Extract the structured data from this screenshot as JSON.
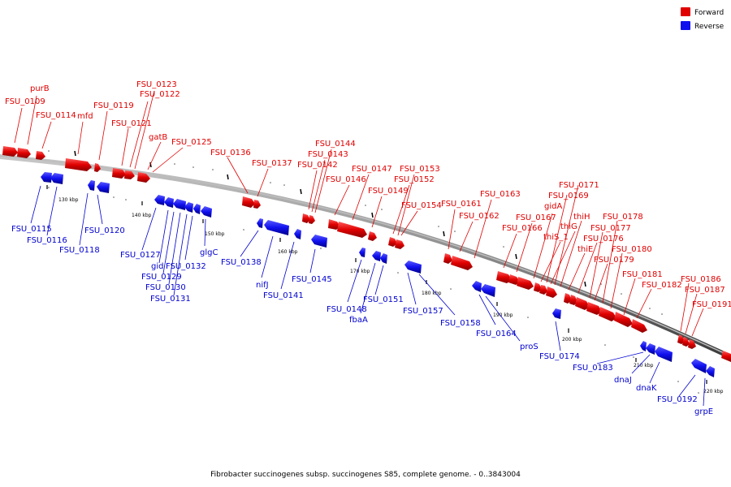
{
  "caption": "Fibrobacter succinogenes subsp. succinogenes S85, complete genome. - 0..3843004",
  "legend": [
    {
      "label": "Forward",
      "color": "#e00000"
    },
    {
      "label": "Reverse",
      "color": "#1010ee"
    }
  ],
  "ticks": [
    "130 kbp",
    "140 kbp",
    "150 kbp",
    "160 kbp",
    "170 kbp",
    "180 kbp",
    "190 kbp",
    "200 kbp",
    "210 kbp",
    "220 kbp"
  ],
  "forward_genes": [
    "FSU_0109",
    "purB",
    "FSU_0114",
    "mfd",
    "FSU_0119",
    "FSU_0121",
    "FSU_0122",
    "FSU_0123",
    "gatB",
    "FSU_0125",
    "FSU_0136",
    "FSU_0137",
    "FSU_0142",
    "FSU_0143",
    "FSU_0144",
    "FSU_0146",
    "FSU_0147",
    "FSU_0149",
    "FSU_0152",
    "FSU_0153",
    "FSU_0154",
    "FSU_0161",
    "FSU_0162",
    "FSU_0163",
    "FSU_0166",
    "FSU_0167",
    "thiS_1",
    "gidA",
    "thiG",
    "FSU_0169",
    "thiH",
    "FSU_0171",
    "thiE",
    "FSU_0176",
    "FSU_0177",
    "FSU_0178",
    "FSU_0179",
    "FSU_0180",
    "FSU_0181",
    "FSU_0182",
    "FSU_0186",
    "FSU_0187",
    "FSU_0191"
  ],
  "reverse_genes": [
    "FSU_0115",
    "FSU_0116",
    "FSU_0118",
    "FSU_0120",
    "FSU_0127",
    "gid",
    "FSU_0129",
    "FSU_0130",
    "FSU_0131",
    "FSU_0132",
    "glgC",
    "FSU_0138",
    "nifJ",
    "FSU_0141",
    "FSU_0145",
    "FSU_0148",
    "fbaA",
    "FSU_0151",
    "FSU_0157",
    "FSU_0158",
    "FSU_0164",
    "proS",
    "FSU_0174",
    "FSU_0183",
    "dnaJ",
    "dnaK",
    "FSU_0192",
    "grpE"
  ]
}
